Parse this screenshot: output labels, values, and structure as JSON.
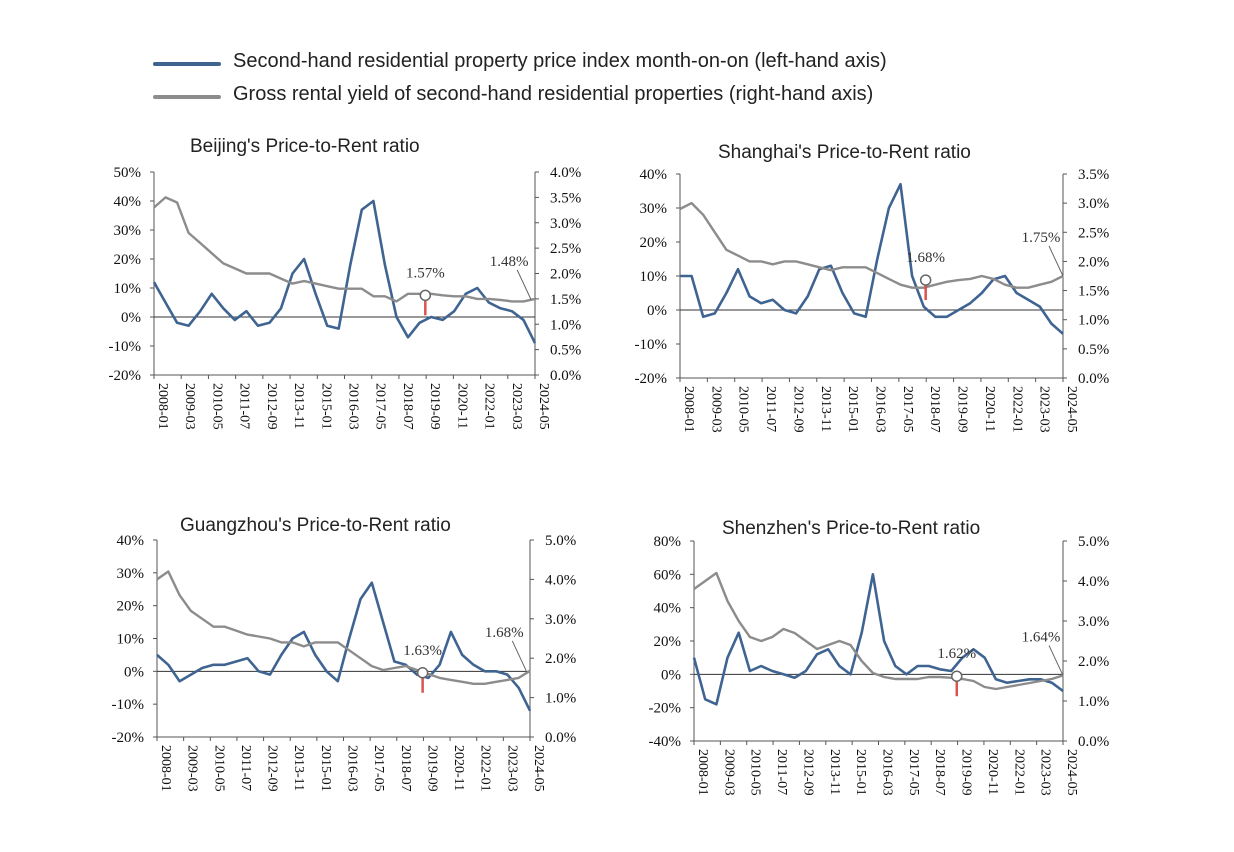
{
  "legend": {
    "items": [
      {
        "label": "Second-hand residential property price index month-on-on (left-hand axis)",
        "color": "#3f6491"
      },
      {
        "label": "Gross rental yield of second-hand residential properties (right-hand axis)",
        "color": "#8c8c8c"
      }
    ]
  },
  "colors": {
    "price": "#3f6491",
    "yield": "#8c8c8c",
    "marker": "#d9534f"
  },
  "x_ticks": [
    "2008-01",
    "2009-03",
    "2010-05",
    "2011-07",
    "2012-09",
    "2013-11",
    "2015-01",
    "2016-03",
    "2017-05",
    "2018-07",
    "2019-09",
    "2020-11",
    "2022-01",
    "2023-03",
    "2024-05"
  ],
  "chart_data": [
    {
      "type": "line",
      "title": "Beijing's Price-to-Rent ratio",
      "left_ticks": [
        "50%",
        "40%",
        "30%",
        "20%",
        "10%",
        "0%",
        "-10%",
        "-20%"
      ],
      "right_ticks": [
        "4.0%",
        "3.5%",
        "3.0%",
        "2.5%",
        "2.0%",
        "1.5%",
        "1.0%",
        "0.5%",
        "0.0%"
      ],
      "ylim_left": [
        -20,
        50
      ],
      "ylim_right": [
        0,
        4.0
      ],
      "annotations": [
        {
          "label": "1.57%",
          "x": 141,
          "y": 1.57,
          "marker": true
        },
        {
          "label": "1.48%",
          "x": 196,
          "y": 1.48,
          "marker": false
        }
      ],
      "series": [
        {
          "name": "Price index m-o-m",
          "axis": "left",
          "x": [
            0,
            6,
            12,
            18,
            24,
            30,
            36,
            42,
            48,
            54,
            60,
            66,
            72,
            78,
            84,
            90,
            96,
            102,
            108,
            114,
            120,
            126,
            132,
            138,
            144,
            150,
            156,
            162,
            168,
            174,
            180,
            186,
            192,
            198
          ],
          "values": [
            12,
            5,
            -2,
            -3,
            2,
            8,
            3,
            -1,
            2,
            -3,
            -2,
            3,
            15,
            20,
            8,
            -3,
            -4,
            18,
            37,
            40,
            18,
            0,
            -7,
            -2,
            0,
            -1,
            2,
            8,
            10,
            5,
            3,
            2,
            -1,
            -9
          ]
        },
        {
          "name": "Gross rental yield",
          "axis": "right",
          "x": [
            0,
            6,
            12,
            18,
            24,
            30,
            36,
            42,
            48,
            54,
            60,
            66,
            72,
            78,
            84,
            90,
            96,
            102,
            108,
            114,
            120,
            126,
            132,
            138,
            144,
            150,
            156,
            162,
            168,
            174,
            180,
            186,
            192,
            198
          ],
          "values": [
            3.3,
            3.5,
            3.4,
            2.8,
            2.6,
            2.4,
            2.2,
            2.1,
            2.0,
            2.0,
            2.0,
            1.9,
            1.8,
            1.85,
            1.8,
            1.75,
            1.7,
            1.7,
            1.7,
            1.55,
            1.55,
            1.45,
            1.6,
            1.6,
            1.6,
            1.57,
            1.55,
            1.55,
            1.5,
            1.5,
            1.48,
            1.45,
            1.45,
            1.5
          ]
        }
      ]
    },
    {
      "type": "line",
      "title": "Shanghai's Price-to-Rent ratio",
      "left_ticks": [
        "40%",
        "30%",
        "20%",
        "10%",
        "0%",
        "-10%",
        "-20%"
      ],
      "right_ticks": [
        "3.5%",
        "3.0%",
        "2.5%",
        "2.0%",
        "1.5%",
        "1.0%",
        "0.5%",
        "0.0%"
      ],
      "ylim_left": [
        -20,
        40
      ],
      "ylim_right": [
        0,
        3.5
      ],
      "annotations": [
        {
          "label": "1.68%",
          "x": 127,
          "y": 1.68,
          "marker": true
        },
        {
          "label": "1.75%",
          "x": 198,
          "y": 1.75,
          "marker": false
        }
      ],
      "series": [
        {
          "name": "Price index m-o-m",
          "axis": "left",
          "x": [
            0,
            6,
            12,
            18,
            24,
            30,
            36,
            42,
            48,
            54,
            60,
            66,
            72,
            78,
            84,
            90,
            96,
            102,
            108,
            114,
            120,
            126,
            132,
            138,
            144,
            150,
            156,
            162,
            168,
            174,
            180,
            186,
            192,
            198
          ],
          "values": [
            10,
            10,
            -2,
            -1,
            5,
            12,
            4,
            2,
            3,
            0,
            -1,
            4,
            12,
            13,
            5,
            -1,
            -2,
            15,
            30,
            37,
            10,
            1,
            -2,
            -2,
            0,
            2,
            5,
            9,
            10,
            5,
            3,
            1,
            -4,
            -7
          ]
        },
        {
          "name": "Gross rental yield",
          "axis": "right",
          "x": [
            0,
            6,
            12,
            18,
            24,
            30,
            36,
            42,
            48,
            54,
            60,
            66,
            72,
            78,
            84,
            90,
            96,
            102,
            108,
            114,
            120,
            126,
            132,
            138,
            144,
            150,
            156,
            162,
            168,
            174,
            180,
            186,
            192,
            198
          ],
          "values": [
            2.9,
            3.0,
            2.8,
            2.5,
            2.2,
            2.1,
            2.0,
            2.0,
            1.95,
            2.0,
            2.0,
            1.95,
            1.9,
            1.85,
            1.9,
            1.9,
            1.9,
            1.8,
            1.7,
            1.6,
            1.55,
            1.55,
            1.6,
            1.65,
            1.68,
            1.7,
            1.75,
            1.7,
            1.6,
            1.55,
            1.55,
            1.6,
            1.65,
            1.75
          ]
        }
      ]
    },
    {
      "type": "line",
      "title": "Guangzhou's Price-to-Rent ratio",
      "left_ticks": [
        "40%",
        "30%",
        "20%",
        "10%",
        "0%",
        "-10%",
        "-20%"
      ],
      "right_ticks": [
        "5.0%",
        "4.0%",
        "3.0%",
        "2.0%",
        "1.0%",
        "0.0%"
      ],
      "ylim_left": [
        -20,
        40
      ],
      "ylim_right": [
        0,
        5.0
      ],
      "annotations": [
        {
          "label": "1.63%",
          "x": 141,
          "y": 1.63,
          "marker": true
        },
        {
          "label": "1.68%",
          "x": 196,
          "y": 1.68,
          "marker": false
        }
      ],
      "series": [
        {
          "name": "Price index m-o-m",
          "axis": "left",
          "x": [
            0,
            6,
            12,
            18,
            24,
            30,
            36,
            42,
            48,
            54,
            60,
            66,
            72,
            78,
            84,
            90,
            96,
            102,
            108,
            114,
            120,
            126,
            132,
            138,
            144,
            150,
            156,
            162,
            168,
            174,
            180,
            186,
            192,
            198
          ],
          "values": [
            5,
            2,
            -3,
            -1,
            1,
            2,
            2,
            3,
            4,
            0,
            -1,
            5,
            10,
            12,
            5,
            0,
            -3,
            10,
            22,
            27,
            15,
            3,
            2,
            -1,
            -2,
            2,
            12,
            5,
            2,
            0,
            0,
            -1,
            -5,
            -12
          ]
        },
        {
          "name": "Gross rental yield",
          "axis": "right",
          "x": [
            0,
            6,
            12,
            18,
            24,
            30,
            36,
            42,
            48,
            54,
            60,
            66,
            72,
            78,
            84,
            90,
            96,
            102,
            108,
            114,
            120,
            126,
            132,
            138,
            144,
            150,
            156,
            162,
            168,
            174,
            180,
            186,
            192,
            198
          ],
          "values": [
            4.0,
            4.2,
            3.6,
            3.2,
            3.0,
            2.8,
            2.8,
            2.7,
            2.6,
            2.55,
            2.5,
            2.4,
            2.4,
            2.3,
            2.4,
            2.4,
            2.4,
            2.2,
            2.0,
            1.8,
            1.7,
            1.75,
            1.8,
            1.7,
            1.6,
            1.5,
            1.45,
            1.4,
            1.35,
            1.35,
            1.4,
            1.45,
            1.5,
            1.68
          ]
        }
      ]
    },
    {
      "type": "line",
      "title": "Shenzhen's Price-to-Rent ratio",
      "left_ticks": [
        "80%",
        "60%",
        "40%",
        "20%",
        "0%",
        "-20%",
        "-40%"
      ],
      "right_ticks": [
        "5.0%",
        "4.0%",
        "3.0%",
        "2.0%",
        "1.0%",
        "0.0%"
      ],
      "ylim_left": [
        -40,
        80
      ],
      "ylim_right": [
        0,
        5.0
      ],
      "annotations": [
        {
          "label": "1.62%",
          "x": 141,
          "y": 1.62,
          "marker": true
        },
        {
          "label": "1.64%",
          "x": 198,
          "y": 1.64,
          "marker": false
        }
      ],
      "series": [
        {
          "name": "Price index m-o-m",
          "axis": "left",
          "x": [
            0,
            6,
            12,
            18,
            24,
            30,
            36,
            42,
            48,
            54,
            60,
            66,
            72,
            78,
            84,
            90,
            96,
            102,
            108,
            114,
            120,
            126,
            132,
            138,
            144,
            150,
            156,
            162,
            168,
            174,
            180,
            186,
            192,
            198
          ],
          "values": [
            10,
            -15,
            -18,
            10,
            25,
            2,
            5,
            2,
            0,
            -2,
            2,
            12,
            15,
            5,
            0,
            25,
            60,
            20,
            5,
            0,
            5,
            5,
            3,
            2,
            10,
            15,
            10,
            -3,
            -5,
            -4,
            -3,
            -3,
            -5,
            -10
          ]
        },
        {
          "name": "Gross rental yield",
          "axis": "right",
          "x": [
            0,
            6,
            12,
            18,
            24,
            30,
            36,
            42,
            48,
            54,
            60,
            66,
            72,
            78,
            84,
            90,
            96,
            102,
            108,
            114,
            120,
            126,
            132,
            138,
            144,
            150,
            156,
            162,
            168,
            174,
            180,
            186,
            192,
            198
          ],
          "values": [
            3.8,
            4.0,
            4.2,
            3.5,
            3.0,
            2.6,
            2.5,
            2.6,
            2.8,
            2.7,
            2.5,
            2.3,
            2.4,
            2.5,
            2.4,
            2.0,
            1.7,
            1.6,
            1.55,
            1.55,
            1.55,
            1.6,
            1.6,
            1.58,
            1.55,
            1.5,
            1.35,
            1.3,
            1.35,
            1.4,
            1.45,
            1.5,
            1.55,
            1.64
          ]
        }
      ]
    }
  ]
}
